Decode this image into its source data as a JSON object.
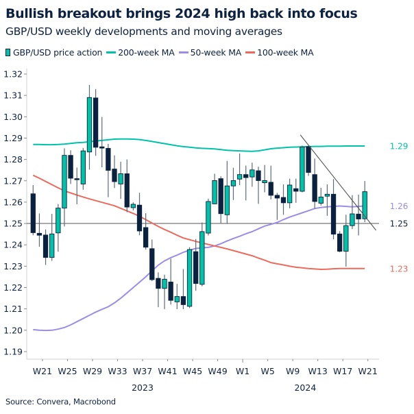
{
  "header": {
    "title": "Bullish breakout brings 2024 high back into focus",
    "subtitle": "GBP/USD weekly developments and moving averages"
  },
  "legend": [
    {
      "label": "GBP/USD price action",
      "icon": "candlestick-icon",
      "color": "#00c2a8"
    },
    {
      "label": "200-week MA",
      "color": "#00c2a8"
    },
    {
      "label": "50-week MA",
      "color": "#9b8ce8"
    },
    {
      "label": "100-week MA",
      "color": "#ec6a5c"
    }
  ],
  "source": "Source: Convera, Macrobond",
  "chart_data": {
    "type": "candlestick",
    "title": "Bullish breakout brings 2024 high back into focus",
    "subtitle": "GBP/USD weekly developments and moving averages",
    "ylim": [
      1.19,
      1.32
    ],
    "y_ticks": [
      "1.32",
      "1.31",
      "1.30",
      "1.29",
      "1.28",
      "1.27",
      "1.26",
      "1.25",
      "1.24",
      "1.23",
      "1.22",
      "1.21",
      "1.20",
      "1.19"
    ],
    "x_ticks": [
      {
        "week": "2023-W21",
        "label": "W21"
      },
      {
        "week": "2023-W25",
        "label": "W25"
      },
      {
        "week": "2023-W29",
        "label": "W29"
      },
      {
        "week": "2023-W33",
        "label": "W33"
      },
      {
        "week": "2023-W37",
        "label": "W37"
      },
      {
        "week": "2023-W41",
        "label": "W41"
      },
      {
        "week": "2023-W45",
        "label": "W45"
      },
      {
        "week": "2023-W49",
        "label": "W49"
      },
      {
        "week": "2024-W1",
        "label": "W1"
      },
      {
        "week": "2024-W5",
        "label": "W5"
      },
      {
        "week": "2024-W9",
        "label": "W9"
      },
      {
        "week": "2024-W13",
        "label": "W13"
      },
      {
        "week": "2024-W17",
        "label": "W17"
      },
      {
        "week": "2024-W21",
        "label": "W21"
      }
    ],
    "year_labels": [
      {
        "label": "2023",
        "week": "2023-W37"
      },
      {
        "label": "2024",
        "week": "2024-W11"
      }
    ],
    "grid": false,
    "legend_position": "top-left",
    "colors": {
      "bull": "#00c2a8",
      "bear": "#0a2240",
      "wick": "#5c6b79",
      "ma200": "#00c2a8",
      "ma50": "#9b8ce8",
      "ma100": "#ec6a5c",
      "reference": "#555555",
      "trendline": "#555555"
    },
    "candle_fields": [
      "week",
      "open",
      "high",
      "low",
      "close"
    ],
    "candles": [
      [
        "2023-W20",
        1.2639,
        1.268,
        1.2445,
        1.2457
      ],
      [
        "2023-W21",
        1.2454,
        1.2547,
        1.2391,
        1.2445
      ],
      [
        "2023-W22",
        1.2446,
        1.2472,
        1.2306,
        1.2341
      ],
      [
        "2023-W23",
        1.2341,
        1.2545,
        1.2325,
        1.2451
      ],
      [
        "2023-W24",
        1.2456,
        1.2591,
        1.2368,
        1.2572
      ],
      [
        "2023-W25",
        1.2572,
        1.2852,
        1.2486,
        1.2819
      ],
      [
        "2023-W26",
        1.2819,
        1.2843,
        1.2685,
        1.2712
      ],
      [
        "2023-W27",
        1.271,
        1.2762,
        1.259,
        1.2705
      ],
      [
        "2023-W28",
        1.2685,
        1.2854,
        1.2658,
        1.284
      ],
      [
        "2023-W29",
        1.2835,
        1.3149,
        1.2752,
        1.309
      ],
      [
        "2023-W30",
        1.3088,
        1.3129,
        1.2817,
        1.2857
      ],
      [
        "2023-W31",
        1.2859,
        1.2999,
        1.2763,
        1.2853
      ],
      [
        "2023-W32",
        1.2852,
        1.2873,
        1.2623,
        1.2749
      ],
      [
        "2023-W33",
        1.2755,
        1.2819,
        1.2666,
        1.2696
      ],
      [
        "2023-W34",
        1.2685,
        1.2789,
        1.2615,
        1.2733
      ],
      [
        "2023-W35",
        1.2733,
        1.28,
        1.2553,
        1.2577
      ],
      [
        "2023-W36",
        1.2574,
        1.2599,
        1.2561,
        1.259
      ],
      [
        "2023-W37",
        1.2586,
        1.2644,
        1.2445,
        1.2465
      ],
      [
        "2023-W38",
        1.2481,
        1.2548,
        1.2378,
        1.2389
      ],
      [
        "2023-W39",
        1.2382,
        1.2425,
        1.223,
        1.2237
      ],
      [
        "2023-W40",
        1.2243,
        1.2271,
        1.2108,
        1.2196
      ],
      [
        "2023-W41",
        1.2196,
        1.226,
        1.2099,
        1.2239
      ],
      [
        "2023-W42",
        1.2226,
        1.2335,
        1.212,
        1.214
      ],
      [
        "2023-W43",
        1.2133,
        1.2217,
        1.2099,
        1.2158
      ],
      [
        "2023-W44",
        1.2158,
        1.2287,
        1.2099,
        1.212
      ],
      [
        "2023-W45",
        1.2112,
        1.2389,
        1.2104,
        1.2378
      ],
      [
        "2023-W46",
        1.2368,
        1.2427,
        1.2185,
        1.2219
      ],
      [
        "2023-W47",
        1.2215,
        1.2505,
        1.2206,
        1.2462
      ],
      [
        "2023-W48",
        1.2455,
        1.2616,
        1.2444,
        1.2603
      ],
      [
        "2023-W49",
        1.2592,
        1.2733,
        1.259,
        1.2701
      ],
      [
        "2023-W50",
        1.271,
        1.2721,
        1.25,
        1.2546
      ],
      [
        "2023-W51",
        1.2541,
        1.2793,
        1.2498,
        1.2676
      ],
      [
        "2023-W52",
        1.2676,
        1.2761,
        1.261,
        1.2701
      ],
      [
        "2024-W1",
        1.2708,
        1.2828,
        1.268,
        1.2729
      ],
      [
        "2024-W2",
        1.2729,
        1.2771,
        1.2608,
        1.2715
      ],
      [
        "2024-W3",
        1.2718,
        1.2785,
        1.2672,
        1.2751
      ],
      [
        "2024-W4",
        1.2747,
        1.2766,
        1.2592,
        1.2701
      ],
      [
        "2024-W5",
        1.2691,
        1.2774,
        1.2646,
        1.2701
      ],
      [
        "2024-W6",
        1.2693,
        1.2771,
        1.2613,
        1.2632
      ],
      [
        "2024-W7",
        1.2632,
        1.2643,
        1.2517,
        1.2619
      ],
      [
        "2024-W8",
        1.2622,
        1.2683,
        1.2541,
        1.2597
      ],
      [
        "2024-W9",
        1.2597,
        1.271,
        1.2571,
        1.268
      ],
      [
        "2024-W10",
        1.2663,
        1.271,
        1.2597,
        1.2651
      ],
      [
        "2024-W11",
        1.2651,
        1.2865,
        1.2646,
        1.2858
      ],
      [
        "2024-W12",
        1.286,
        1.2865,
        1.2723,
        1.2739
      ],
      [
        "2024-W13",
        1.2729,
        1.2804,
        1.2569,
        1.2603
      ],
      [
        "2024-W14",
        1.2595,
        1.2667,
        1.2584,
        1.2624
      ],
      [
        "2024-W15",
        1.2628,
        1.2683,
        1.2536,
        1.2637
      ],
      [
        "2024-W16",
        1.2637,
        1.2708,
        1.2426,
        1.245
      ],
      [
        "2024-W17",
        1.2451,
        1.2464,
        1.2365,
        1.237
      ],
      [
        "2024-W18",
        1.237,
        1.2541,
        1.2298,
        1.249
      ],
      [
        "2024-W19",
        1.249,
        1.2633,
        1.2474,
        1.2545
      ],
      [
        "2024-W20",
        1.2544,
        1.2635,
        1.2444,
        1.2521
      ],
      [
        "2024-W21",
        1.2522,
        1.2699,
        1.2506,
        1.2649
      ]
    ],
    "series": [
      {
        "name": "200-week MA",
        "end_label": "1.29",
        "values": [
          1.287,
          1.287,
          1.2869,
          1.2869,
          1.287,
          1.2872,
          1.2875,
          1.2878,
          1.288,
          1.2883,
          1.2886,
          1.2889,
          1.2892,
          1.2895,
          1.2896,
          1.2896,
          1.2895,
          1.2893,
          1.2889,
          1.2884,
          1.2879,
          1.2874,
          1.2869,
          1.2864,
          1.286,
          1.2857,
          1.2854,
          1.2852,
          1.2851,
          1.2849,
          1.2846,
          1.2843,
          1.2841,
          1.284,
          1.2839,
          1.2838,
          1.284,
          1.2845,
          1.285,
          1.2853,
          1.2855,
          1.2857,
          1.2858,
          1.2859,
          1.286,
          1.2861,
          1.2861,
          1.2862,
          1.2862,
          1.2862,
          1.2863,
          1.2863,
          1.2863,
          1.2863
        ]
      },
      {
        "name": "50-week MA",
        "end_label": "1.26",
        "values": [
          1.2003,
          1.2,
          1.1999,
          1.2,
          1.2005,
          1.2013,
          1.2025,
          1.204,
          1.2055,
          1.207,
          1.2085,
          1.2098,
          1.211,
          1.2128,
          1.215,
          1.2175,
          1.22,
          1.2225,
          1.225,
          1.2278,
          1.2305,
          1.2325,
          1.234,
          1.2352,
          1.2365,
          1.2375,
          1.2383,
          1.2386,
          1.2388,
          1.2395,
          1.2405,
          1.2418,
          1.243,
          1.244,
          1.2452,
          1.2462,
          1.2475,
          1.2488,
          1.2496,
          1.2505,
          1.2518,
          1.253,
          1.254,
          1.255,
          1.256,
          1.257,
          1.2575,
          1.2578,
          1.258,
          1.2582,
          1.258,
          1.2578,
          1.258,
          1.2582
        ]
      },
      {
        "name": "100-week MA",
        "end_label": "1.23",
        "values": [
          1.2726,
          1.2712,
          1.2697,
          1.2682,
          1.2667,
          1.2653,
          1.2643,
          1.2633,
          1.2624,
          1.2615,
          1.2607,
          1.2599,
          1.2591,
          1.2583,
          1.2571,
          1.2559,
          1.2547,
          1.2534,
          1.2518,
          1.2502,
          1.2486,
          1.2472,
          1.2459,
          1.2445,
          1.2432,
          1.2424,
          1.2416,
          1.2409,
          1.2402,
          1.2395,
          1.2388,
          1.2381,
          1.2373,
          1.2365,
          1.2357,
          1.2349,
          1.2338,
          1.2328,
          1.2317,
          1.2311,
          1.2306,
          1.23,
          1.2295,
          1.2292,
          1.2289,
          1.2287,
          1.2285,
          1.2286,
          1.2288,
          1.2289,
          1.2289,
          1.2289,
          1.2289,
          1.2289
        ]
      }
    ],
    "reference_line": {
      "value": 1.25,
      "label": "1.25"
    },
    "trendline": {
      "start": {
        "week": "2024-W11",
        "price": 1.2915
      },
      "end": {
        "week": "2024-W22",
        "price": 1.2468
      }
    }
  }
}
